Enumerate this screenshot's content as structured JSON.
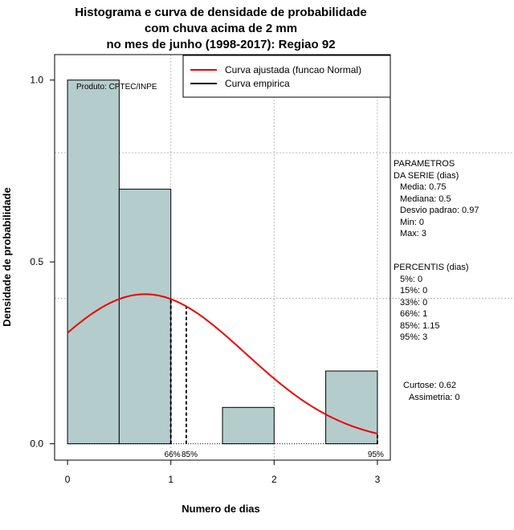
{
  "chart_data": {
    "type": "bar",
    "title_lines": [
      "Histograma e curva de densidade de probabilidade",
      "com chuva acima de 2 mm",
      "no mes de junho (1998-2017): Regiao 92"
    ],
    "xlabel": "Numero de dias",
    "ylabel": "Densidade de probabilidade",
    "xlim": [
      -0.125,
      3.125
    ],
    "ylim": [
      -0.045,
      1.07
    ],
    "x_ticks": [
      0,
      1,
      2,
      3
    ],
    "y_ticks": [
      0.0,
      0.5,
      1.0
    ],
    "x_tick_labels": [
      "0",
      "1",
      "2",
      "3"
    ],
    "y_tick_labels": [
      "0.0",
      "0.5",
      "1.0"
    ],
    "x_grid": [
      1,
      2,
      3
    ],
    "y_grid": [
      0.4,
      0.8
    ],
    "bars": [
      {
        "x0": 0.0,
        "x1": 0.5,
        "density": 1.0
      },
      {
        "x0": 0.5,
        "x1": 1.0,
        "density": 0.7
      },
      {
        "x0": 1.0,
        "x1": 1.5,
        "density": 0.0
      },
      {
        "x0": 1.5,
        "x1": 2.0,
        "density": 0.1
      },
      {
        "x0": 2.0,
        "x1": 2.5,
        "density": 0.0
      },
      {
        "x0": 2.5,
        "x1": 3.0,
        "density": 0.2
      }
    ],
    "normal_curve": {
      "mean": 0.75,
      "sd": 0.97,
      "x_from": 0,
      "x_to": 3
    },
    "percentile_lines": [
      {
        "x": 1.0,
        "label": "66%"
      },
      {
        "x": 1.15,
        "label": "85%"
      },
      {
        "x": 3.0,
        "label": "95%"
      }
    ],
    "legend": [
      {
        "label": "Curva ajustada (funcao Normal)",
        "color": "#ee0000"
      },
      {
        "label": "Curva empirica",
        "color": "#000000"
      }
    ],
    "legend_position": "top-right",
    "product_label": "Produto: CPTEC/INPE",
    "bar_color": "#b5cccc",
    "curve_color": "#ee0000"
  },
  "parameters": {
    "heading_1": "PARAMETROS",
    "heading_2": "DA SERIE (dias)",
    "items": [
      "Media: 0.75",
      "Mediana: 0.5",
      "Desvio padrao: 0.97",
      "Min: 0",
      "Max: 3"
    ]
  },
  "percentiles": {
    "heading": "PERCENTIS (dias)",
    "items": [
      "5%: 0",
      "15%: 0",
      "33%: 0",
      "66%: 1",
      "85%: 1.15",
      "95%: 3"
    ]
  },
  "shape": {
    "kurtosis": "Curtose: 0.62",
    "skewness": "Assimetria: 0"
  }
}
